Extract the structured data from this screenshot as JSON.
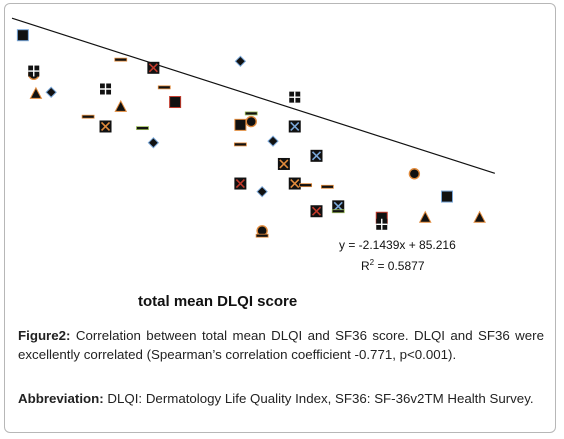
{
  "chart_data": {
    "type": "scatter",
    "title": "",
    "xlabel": "total mean DLQI score",
    "ylabel": "",
    "grid": false,
    "legend": "none",
    "trendline": {
      "equation": "y = -2.1439x + 85.216",
      "r2_label": "R",
      "r2_sup": "2",
      "r2_value": " = 0.5877",
      "slope": -2.1439,
      "intercept": 85.216
    },
    "points": [
      {
        "x": 0.5,
        "y": 80.0,
        "marker": "square"
      },
      {
        "x": 1.0,
        "y": 68.0,
        "marker": "circle"
      },
      {
        "x": 1.0,
        "y": 69.0,
        "marker": "square-plus"
      },
      {
        "x": 1.1,
        "y": 62.0,
        "marker": "triangle"
      },
      {
        "x": 1.8,
        "y": 62.5,
        "marker": "diamond"
      },
      {
        "x": 3.5,
        "y": 55.0,
        "marker": "dash"
      },
      {
        "x": 4.3,
        "y": 63.5,
        "marker": "square-plus"
      },
      {
        "x": 4.3,
        "y": 52.0,
        "marker": "square-x"
      },
      {
        "x": 5.0,
        "y": 58.0,
        "marker": "triangle"
      },
      {
        "x": 5.0,
        "y": 72.5,
        "marker": "dash"
      },
      {
        "x": 6.0,
        "y": 51.5,
        "marker": "dash"
      },
      {
        "x": 6.5,
        "y": 70.0,
        "marker": "square-x"
      },
      {
        "x": 6.5,
        "y": 47.0,
        "marker": "diamond"
      },
      {
        "x": 7.0,
        "y": 64.0,
        "marker": "dash"
      },
      {
        "x": 7.5,
        "y": 59.5,
        "marker": "square"
      },
      {
        "x": 10.5,
        "y": 72.0,
        "marker": "diamond"
      },
      {
        "x": 10.5,
        "y": 52.5,
        "marker": "square"
      },
      {
        "x": 10.5,
        "y": 46.5,
        "marker": "dash"
      },
      {
        "x": 11.0,
        "y": 56.0,
        "marker": "dash"
      },
      {
        "x": 11.0,
        "y": 53.5,
        "marker": "circle"
      },
      {
        "x": 10.5,
        "y": 34.5,
        "marker": "square-x"
      },
      {
        "x": 11.5,
        "y": 32.0,
        "marker": "diamond"
      },
      {
        "x": 11.5,
        "y": 20.0,
        "marker": "circle"
      },
      {
        "x": 11.5,
        "y": 18.5,
        "marker": "dash"
      },
      {
        "x": 12.0,
        "y": 47.5,
        "marker": "diamond"
      },
      {
        "x": 12.5,
        "y": 40.5,
        "marker": "square-x"
      },
      {
        "x": 13.0,
        "y": 61.0,
        "marker": "square-plus"
      },
      {
        "x": 13.0,
        "y": 52.0,
        "marker": "square-x"
      },
      {
        "x": 13.0,
        "y": 34.5,
        "marker": "square-x"
      },
      {
        "x": 13.5,
        "y": 34.0,
        "marker": "dash"
      },
      {
        "x": 14.0,
        "y": 43.0,
        "marker": "square-x"
      },
      {
        "x": 14.5,
        "y": 33.5,
        "marker": "dash"
      },
      {
        "x": 14.0,
        "y": 26.0,
        "marker": "square-x"
      },
      {
        "x": 15.0,
        "y": 27.5,
        "marker": "square-x"
      },
      {
        "x": 15.0,
        "y": 26.0,
        "marker": "dash"
      },
      {
        "x": 17.0,
        "y": 24.0,
        "marker": "square"
      },
      {
        "x": 17.0,
        "y": 22.0,
        "marker": "square-plus"
      },
      {
        "x": 18.5,
        "y": 37.5,
        "marker": "circle"
      },
      {
        "x": 19.0,
        "y": 24.0,
        "marker": "triangle"
      },
      {
        "x": 20.0,
        "y": 30.5,
        "marker": "square"
      },
      {
        "x": 21.5,
        "y": 24.0,
        "marker": "triangle"
      }
    ]
  },
  "caption": {
    "label": "Figure2:",
    "text": " Correlation between total mean DLQI and SF36 score. DLQI and SF36 were excellently correlated (Spearman’s correlation coefficient -0.771, p<0.001)."
  },
  "abbreviation": {
    "label": "Abbreviation:",
    "text": " DLQI: Dermatology Life Quality Index, SF36: SF-36v2TM Health Survey."
  },
  "colors": {
    "marker_fill": "#111111",
    "marker_stroke_blue": "#7aa7d8",
    "marker_stroke_orange": "#e08a3c",
    "marker_stroke_red": "#c0392b",
    "marker_stroke_green": "#9bbb59",
    "trendline": "#111111",
    "border": "#b7b7b7"
  }
}
